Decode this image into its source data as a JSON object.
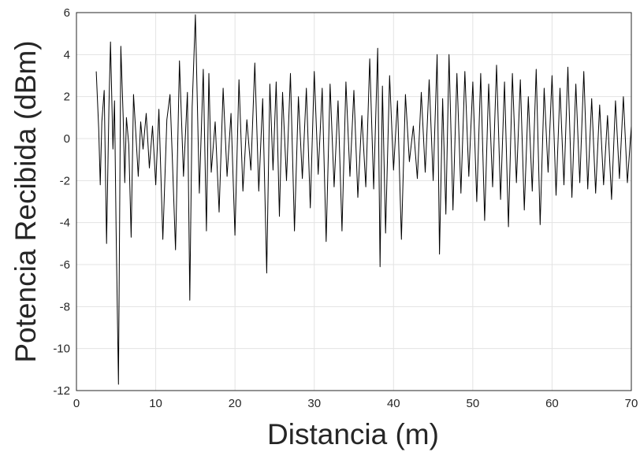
{
  "chart_data": {
    "type": "line",
    "title": "",
    "xlabel": "Distancia (m)",
    "ylabel": "Potencia Recibida (dBm)",
    "xlim": [
      0,
      70
    ],
    "ylim": [
      -12,
      6
    ],
    "xticks": [
      0,
      10,
      20,
      30,
      40,
      50,
      60,
      70
    ],
    "yticks": [
      -12,
      -10,
      -8,
      -6,
      -4,
      -2,
      0,
      2,
      4,
      6
    ],
    "grid": true,
    "legend": "none",
    "colors": {
      "series": "#000000",
      "grid": "#e3e3e3",
      "axes": "#262626",
      "background": "#ffffff"
    },
    "series": [
      {
        "x": [
          2.5,
          2.8,
          3.0,
          3.2,
          3.5,
          3.8,
          4.1,
          4.3,
          4.6,
          4.8,
          5.0,
          5.3,
          5.6,
          5.9,
          6.1,
          6.3,
          6.6,
          6.9,
          7.2,
          7.5,
          7.8,
          8.1,
          8.4,
          8.8,
          9.2,
          9.6,
          10.0,
          10.4,
          10.9,
          11.4,
          11.8,
          12.1,
          12.5,
          13.0,
          13.5,
          14.0,
          14.3,
          14.6,
          15.0,
          15.5,
          16.0,
          16.4,
          16.7,
          17.0,
          17.5,
          18.0,
          18.5,
          19.0,
          19.5,
          20.0,
          20.5,
          21.0,
          21.5,
          22.0,
          22.5,
          23.0,
          23.5,
          24.0,
          24.4,
          24.8,
          25.2,
          25.6,
          26.0,
          26.5,
          27.0,
          27.5,
          28.0,
          28.5,
          29.0,
          29.5,
          30.0,
          30.5,
          31.0,
          31.5,
          32.0,
          32.5,
          33.0,
          33.5,
          34.0,
          34.5,
          35.0,
          35.5,
          36.0,
          36.5,
          37.0,
          37.5,
          38.0,
          38.3,
          38.6,
          39.0,
          39.5,
          40.0,
          40.5,
          41.0,
          41.5,
          42.0,
          42.5,
          43.0,
          43.5,
          44.0,
          44.5,
          45.0,
          45.5,
          45.8,
          46.2,
          46.6,
          47.0,
          47.5,
          48.0,
          48.5,
          49.0,
          49.5,
          50.0,
          50.5,
          51.0,
          51.5,
          52.0,
          52.5,
          53.0,
          53.5,
          54.0,
          54.5,
          55.0,
          55.5,
          56.0,
          56.5,
          57.0,
          57.5,
          58.0,
          58.5,
          59.0,
          59.5,
          60.0,
          60.5,
          61.0,
          61.5,
          62.0,
          62.5,
          63.0,
          63.5,
          64.0,
          64.5,
          65.0,
          65.5,
          66.0,
          66.5,
          67.0,
          67.5,
          68.0,
          68.5,
          69.0,
          69.5,
          70.0
        ],
        "values": [
          3.2,
          0.5,
          -2.2,
          0.8,
          2.3,
          -5.0,
          1.5,
          4.6,
          -0.5,
          1.8,
          -4.3,
          -11.7,
          4.4,
          1.0,
          -2.1,
          1.0,
          -0.3,
          -4.7,
          2.1,
          0.2,
          -1.8,
          0.8,
          -0.5,
          1.2,
          -1.4,
          0.6,
          -2.2,
          1.4,
          -4.8,
          0.9,
          2.1,
          -1.0,
          -5.3,
          3.7,
          -1.8,
          2.2,
          -7.7,
          1.5,
          5.9,
          -2.6,
          3.3,
          -4.4,
          3.1,
          -1.6,
          0.8,
          -3.5,
          2.4,
          -1.8,
          1.2,
          -4.6,
          2.8,
          -2.5,
          0.9,
          -1.5,
          3.6,
          -2.5,
          1.9,
          -6.4,
          2.6,
          -1.5,
          2.7,
          -3.7,
          2.2,
          -2.0,
          3.1,
          -4.4,
          2.0,
          -1.9,
          2.4,
          -3.3,
          3.2,
          -1.7,
          2.4,
          -4.9,
          2.6,
          -2.3,
          1.8,
          -4.4,
          2.7,
          -1.8,
          2.3,
          -2.8,
          1.1,
          -2.3,
          3.8,
          -2.4,
          4.3,
          -6.1,
          2.5,
          -4.5,
          3.0,
          -1.5,
          1.8,
          -4.8,
          2.1,
          -1.1,
          0.6,
          -1.9,
          2.2,
          -1.6,
          2.8,
          -2.0,
          4.0,
          -5.5,
          1.9,
          -3.6,
          4.0,
          -3.4,
          3.1,
          -2.6,
          3.2,
          -1.8,
          2.7,
          -3.0,
          3.1,
          -3.9,
          2.6,
          -2.3,
          3.5,
          -2.9,
          2.7,
          -4.2,
          3.1,
          -2.1,
          2.8,
          -3.4,
          2.0,
          -2.5,
          3.3,
          -4.1,
          2.4,
          -1.6,
          3.0,
          -2.7,
          2.4,
          -2.2,
          3.4,
          -2.8,
          2.6,
          -2.1,
          3.2,
          -2.4,
          1.9,
          -2.6,
          1.6,
          -2.2,
          1.1,
          -2.9,
          1.8,
          -1.9,
          2.0,
          -2.1,
          0.6
        ]
      }
    ]
  }
}
